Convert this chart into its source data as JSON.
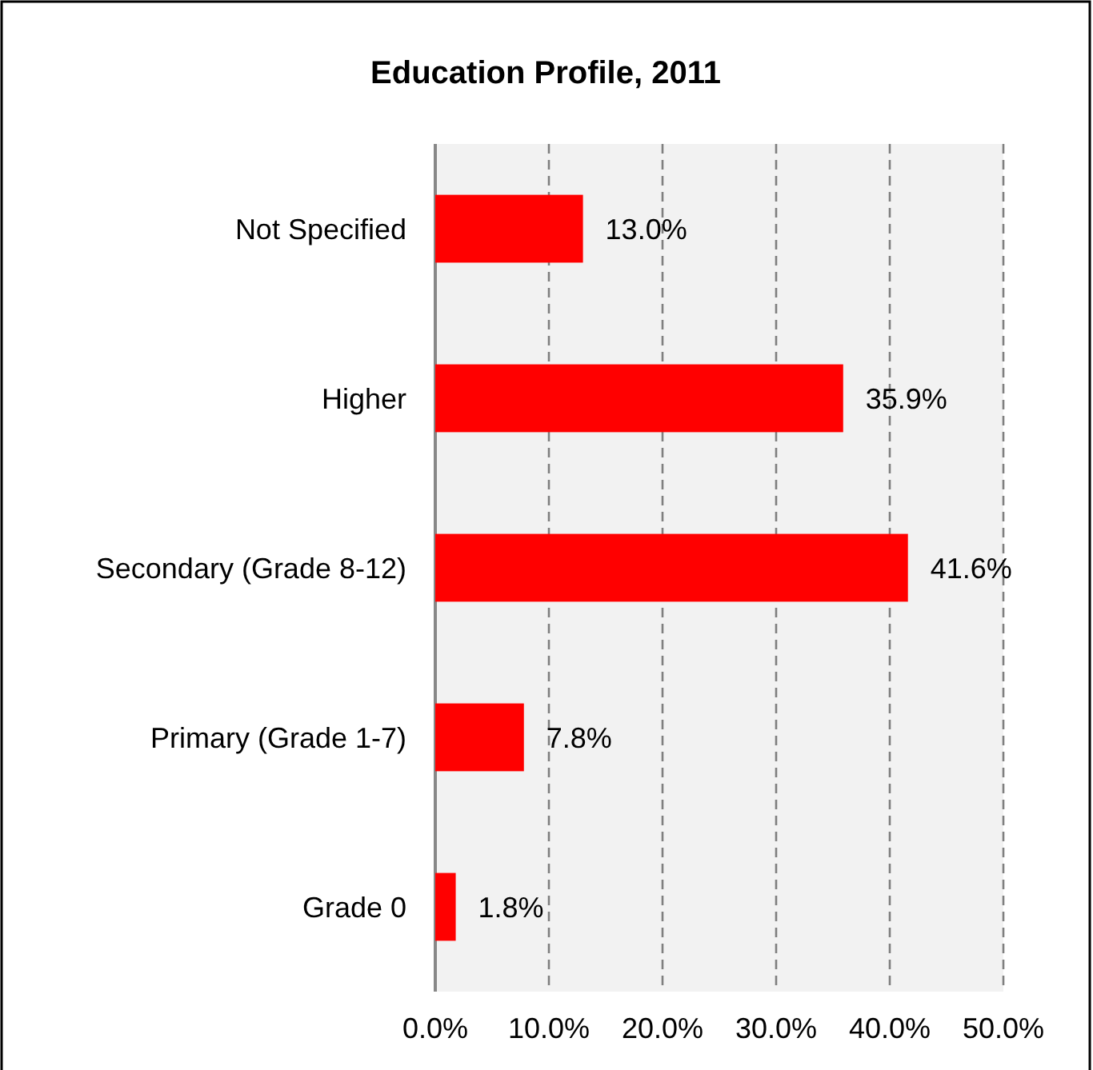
{
  "chart_data": {
    "type": "bar",
    "orientation": "horizontal",
    "title": "Education Profile, 2011",
    "categories": [
      "Not Specified",
      "Higher",
      "Secondary (Grade 8-12)",
      "Primary (Grade 1-7)",
      "Grade 0"
    ],
    "values": [
      13.0,
      35.9,
      41.6,
      7.8,
      1.8
    ],
    "value_labels": [
      "13.0%",
      "35.9%",
      "41.6%",
      "7.8%",
      "1.8%"
    ],
    "color": "#ff0000",
    "xlim": [
      0,
      50
    ],
    "xticks": [
      {
        "value": 0,
        "label": "0.0%"
      },
      {
        "value": 10,
        "label": "10.0%"
      },
      {
        "value": 20,
        "label": "20.0%"
      },
      {
        "value": 30,
        "label": "30.0%"
      },
      {
        "value": 40,
        "label": "40.0%"
      },
      {
        "value": 50,
        "label": "50.0%"
      }
    ],
    "grid": "x"
  }
}
